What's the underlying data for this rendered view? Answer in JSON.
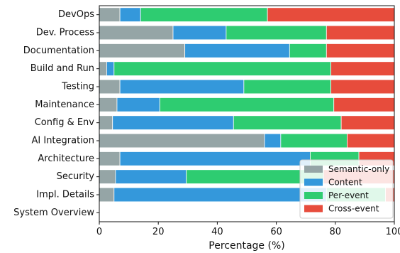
{
  "chart_data": {
    "type": "bar",
    "orientation": "horizontal",
    "stacked": true,
    "title": "",
    "xlabel": "Percentage (%)",
    "ylabel": "",
    "xlim": [
      0,
      100
    ],
    "xticks": [
      0,
      20,
      40,
      60,
      80,
      100
    ],
    "grid": false,
    "legend_position": "bottom-right",
    "categories": [
      "DevOps",
      "Dev. Process",
      "Documentation",
      "Build and Run",
      "Testing",
      "Maintenance",
      "Config & Env",
      "AI Integration",
      "Architecture",
      "Security",
      "Impl. Details",
      "System Overview"
    ],
    "series": [
      {
        "name": "Semantic-only",
        "color": "#95a5a6",
        "values": [
          7,
          25,
          29,
          2.5,
          7,
          6,
          4.5,
          56,
          7,
          5.5,
          5,
          0
        ]
      },
      {
        "name": "Content",
        "color": "#3498db",
        "values": [
          7,
          18,
          35.5,
          2.5,
          42,
          14.5,
          41,
          5.5,
          64.5,
          24,
          72,
          0
        ]
      },
      {
        "name": "Per-event",
        "color": "#2ecc71",
        "values": [
          43,
          34,
          12.5,
          73.5,
          29.5,
          59,
          36.5,
          22.5,
          16.5,
          46.5,
          20,
          0
        ]
      },
      {
        "name": "Cross-event",
        "color": "#e74c3c",
        "values": [
          43,
          23,
          23,
          21.5,
          21.5,
          20.5,
          18,
          16,
          12,
          24,
          3,
          0
        ]
      }
    ]
  }
}
